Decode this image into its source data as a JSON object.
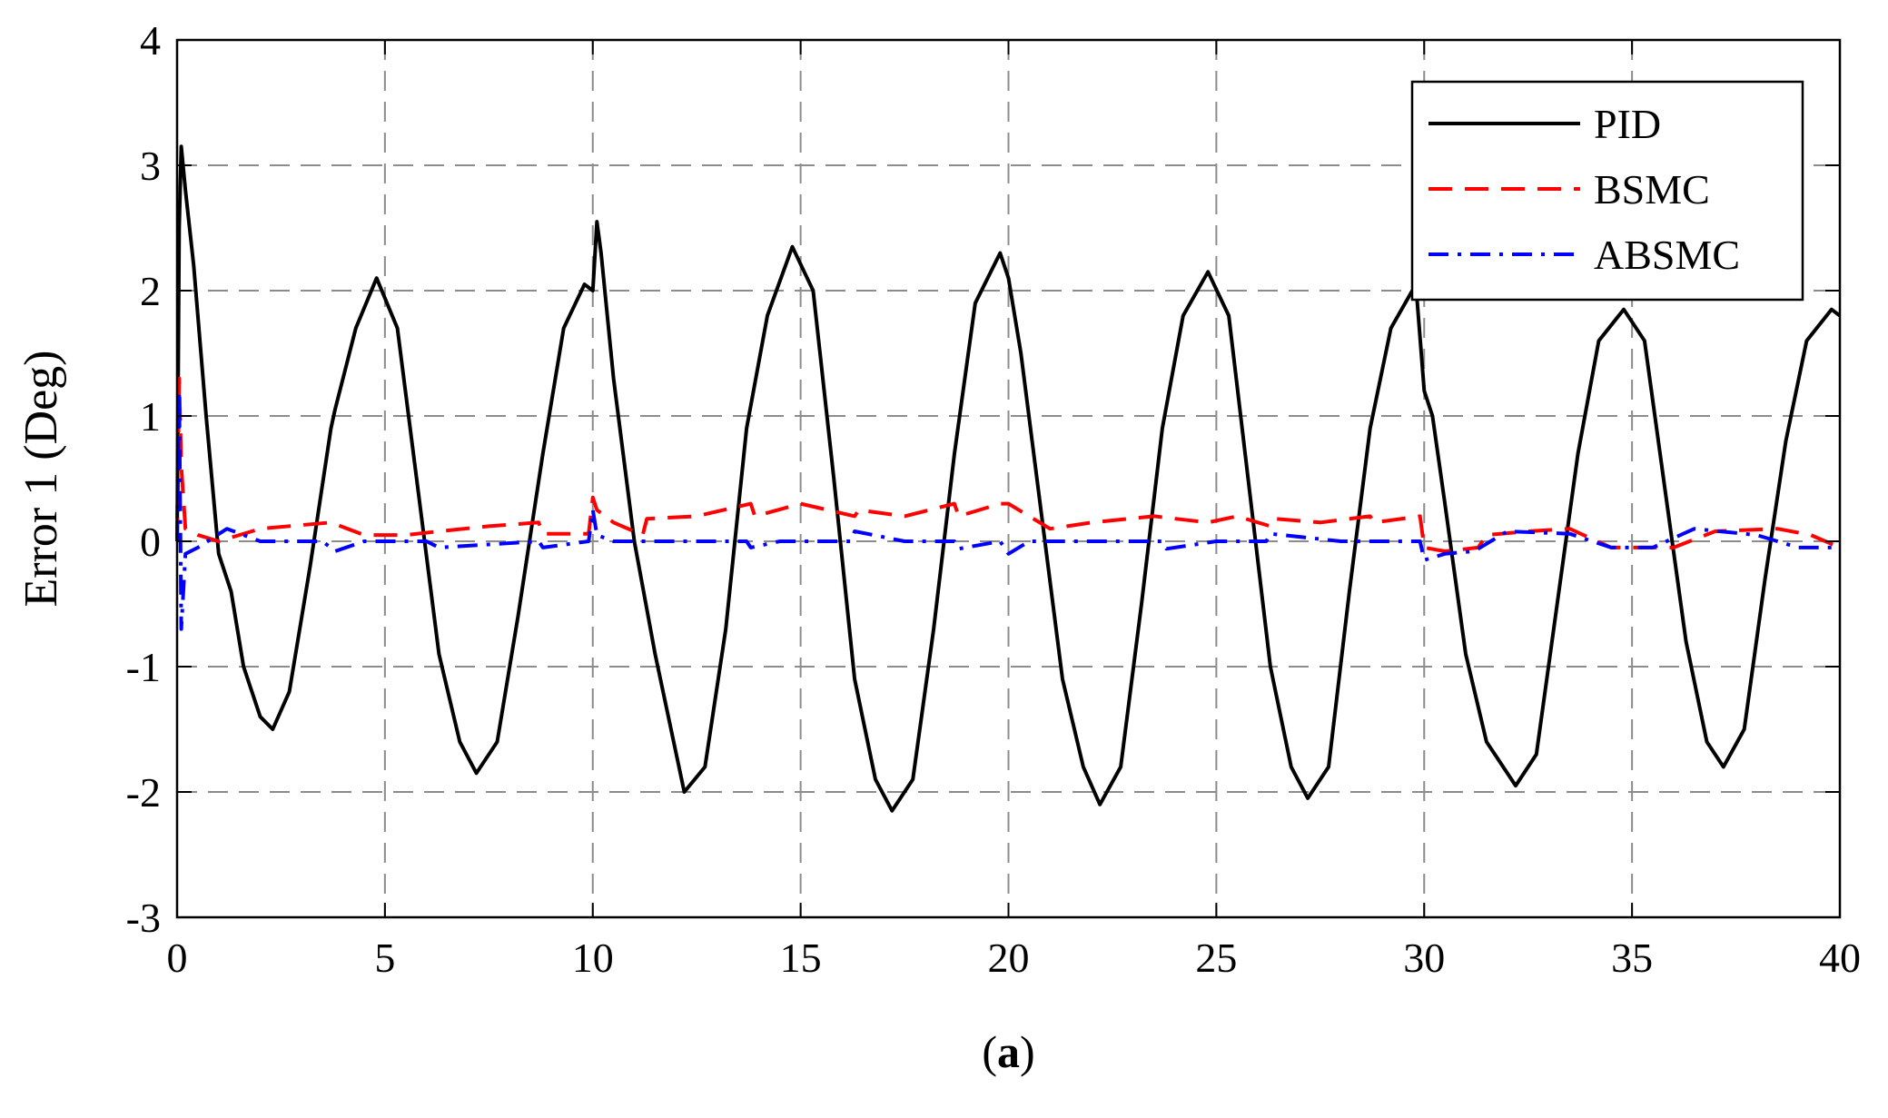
{
  "chart_data": {
    "type": "line",
    "title": "",
    "xlabel": "",
    "ylabel": "Error 1 (Deg)",
    "caption_open": "(",
    "caption_letter": "a",
    "caption_close": ")",
    "xlim": [
      0,
      40
    ],
    "ylim": [
      -3,
      4
    ],
    "xticks": [
      0,
      5,
      10,
      15,
      20,
      25,
      30,
      35,
      40
    ],
    "yticks": [
      -3,
      -2,
      -1,
      0,
      1,
      2,
      3,
      4
    ],
    "xtick_labels": [
      "0",
      "5",
      "10",
      "15",
      "20",
      "25",
      "30",
      "35",
      "40"
    ],
    "ytick_labels": [
      "-3",
      "-2",
      "-1",
      "0",
      "1",
      "2",
      "3",
      "4"
    ],
    "grid": true,
    "legend_position": "top-right",
    "series": [
      {
        "name": "PID",
        "color": "#000000",
        "style": "solid",
        "x": [
          0,
          0.05,
          0.1,
          0.2,
          0.4,
          0.7,
          1.0,
          1.3,
          1.6,
          2.0,
          2.3,
          2.7,
          3.2,
          3.7,
          3.8,
          4.3,
          4.8,
          5.3,
          5.8,
          6.3,
          6.8,
          7.2,
          7.7,
          8.2,
          8.8,
          9.3,
          9.8,
          10.0,
          10.1,
          10.2,
          10.5,
          11.0,
          11.5,
          12.2,
          12.7,
          13.2,
          13.7,
          14.2,
          14.8,
          15.3,
          15.8,
          16.3,
          16.8,
          17.2,
          17.7,
          18.2,
          18.7,
          19.2,
          19.8,
          20.0,
          20.3,
          20.8,
          21.3,
          21.8,
          22.2,
          22.7,
          23.2,
          23.7,
          24.2,
          24.8,
          25.3,
          25.8,
          26.3,
          26.8,
          27.2,
          27.7,
          28.2,
          28.7,
          29.2,
          29.8,
          30.0,
          30.2,
          30.5,
          31.0,
          31.5,
          32.2,
          32.7,
          33.2,
          33.7,
          34.2,
          34.8,
          35.3,
          35.8,
          36.3,
          36.8,
          37.2,
          37.7,
          38.2,
          38.7,
          39.2,
          39.8,
          40.0
        ],
        "y": [
          0,
          2.5,
          3.15,
          2.8,
          2.2,
          1.0,
          -0.1,
          -0.4,
          -1.0,
          -1.4,
          -1.5,
          -1.2,
          -0.2,
          0.9,
          1.05,
          1.7,
          2.1,
          1.7,
          0.4,
          -0.9,
          -1.6,
          -1.85,
          -1.6,
          -0.6,
          0.7,
          1.7,
          2.05,
          2.0,
          2.55,
          2.3,
          1.3,
          0.0,
          -0.9,
          -2.0,
          -1.8,
          -0.7,
          0.9,
          1.8,
          2.35,
          2.0,
          0.5,
          -1.1,
          -1.9,
          -2.15,
          -1.9,
          -0.7,
          0.7,
          1.9,
          2.3,
          2.1,
          1.5,
          0.2,
          -1.1,
          -1.8,
          -2.1,
          -1.8,
          -0.5,
          0.9,
          1.8,
          2.15,
          1.8,
          0.4,
          -1.0,
          -1.8,
          -2.05,
          -1.8,
          -0.4,
          0.9,
          1.7,
          2.05,
          1.2,
          1.0,
          0.3,
          -0.9,
          -1.6,
          -1.95,
          -1.7,
          -0.5,
          0.7,
          1.6,
          1.85,
          1.6,
          0.4,
          -0.8,
          -1.6,
          -1.8,
          -1.5,
          -0.3,
          0.8,
          1.6,
          1.85,
          1.8
        ]
      },
      {
        "name": "BSMC",
        "color": "#ff0000",
        "style": "dashed",
        "x": [
          0,
          0.05,
          0.1,
          0.2,
          0.5,
          1.0,
          2.0,
          3.0,
          3.7,
          4.5,
          5.5,
          6.3,
          7.5,
          8.7,
          8.8,
          9.9,
          10.0,
          10.1,
          10.5,
          11.2,
          11.3,
          12.5,
          13.8,
          13.9,
          15.0,
          16.3,
          16.4,
          17.5,
          18.7,
          18.8,
          19.8,
          20.0,
          21.0,
          22.0,
          23.5,
          24.8,
          25.5,
          26.3,
          26.4,
          27.5,
          28.7,
          28.8,
          29.9,
          30.0,
          30.5,
          31.3,
          31.5,
          32.5,
          33.5,
          34.5,
          36.0,
          37.0,
          38.5,
          39.3,
          40.0
        ],
        "y": [
          0,
          1.3,
          0.6,
          0.1,
          0.05,
          0.0,
          0.1,
          0.13,
          0.15,
          0.05,
          0.05,
          0.08,
          0.12,
          0.15,
          0.06,
          0.06,
          0.35,
          0.25,
          0.15,
          0.05,
          0.18,
          0.2,
          0.3,
          0.2,
          0.3,
          0.2,
          0.25,
          0.2,
          0.3,
          0.2,
          0.3,
          0.3,
          0.1,
          0.15,
          0.2,
          0.15,
          0.2,
          0.12,
          0.18,
          0.15,
          0.2,
          0.15,
          0.2,
          -0.05,
          -0.08,
          -0.05,
          0.05,
          0.08,
          0.1,
          -0.05,
          -0.05,
          0.08,
          0.1,
          0.05,
          -0.05
        ]
      },
      {
        "name": "ABSMC",
        "color": "#0000ff",
        "style": "dashdot",
        "x": [
          0,
          0.05,
          0.1,
          0.2,
          0.5,
          1.2,
          2.0,
          3.5,
          3.8,
          4.5,
          6.0,
          6.3,
          8.7,
          8.8,
          9.9,
          10.0,
          10.1,
          10.5,
          11.5,
          13.7,
          13.8,
          14.5,
          16.2,
          16.3,
          17.5,
          18.7,
          18.8,
          19.8,
          20.0,
          20.5,
          23.7,
          23.8,
          25.0,
          26.2,
          26.3,
          28.0,
          29.9,
          30.0,
          30.5,
          31.2,
          32.0,
          33.5,
          34.5,
          35.5,
          36.5,
          38.0,
          39.0,
          40.0
        ],
        "y": [
          0,
          1.2,
          -0.7,
          -0.1,
          -0.05,
          0.1,
          0.0,
          0.0,
          -0.08,
          0.0,
          0.0,
          -0.05,
          0.0,
          -0.05,
          0.0,
          0.25,
          0.05,
          0.0,
          0.0,
          0.0,
          -0.05,
          0.0,
          0.0,
          0.08,
          0.0,
          0.0,
          -0.06,
          0.0,
          -0.1,
          0.0,
          0.0,
          -0.06,
          0.0,
          0.0,
          0.06,
          0.0,
          0.0,
          -0.15,
          -0.1,
          -0.08,
          0.08,
          0.06,
          -0.05,
          -0.05,
          0.1,
          0.05,
          -0.05,
          -0.05
        ]
      }
    ]
  }
}
